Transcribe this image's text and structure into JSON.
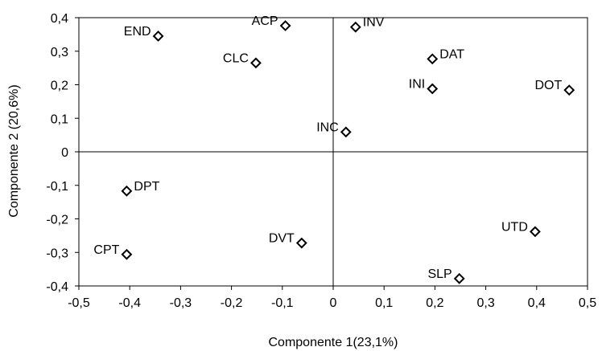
{
  "chart_data": {
    "type": "scatter",
    "xlabel": "Componente 1(23,1%)",
    "ylabel": "Componente 2 (20,6%)",
    "xlim": [
      -0.5,
      0.5
    ],
    "ylim": [
      -0.4,
      0.4
    ],
    "xticks": [
      -0.5,
      -0.4,
      -0.3,
      -0.2,
      -0.1,
      0,
      0.1,
      0.2,
      0.3,
      0.4,
      0.5
    ],
    "yticks": [
      0.4,
      0.3,
      0.2,
      0.1,
      0,
      -0.1,
      -0.2,
      -0.3,
      -0.4
    ],
    "xtick_labels": [
      "-0,5",
      "-0,4",
      "-0,3",
      "-0,2",
      "-0,1",
      "0",
      "0,1",
      "0,2",
      "0,3",
      "0,4",
      "0,5"
    ],
    "ytick_labels": [
      "0,4",
      "0,3",
      "0,2",
      "0,1",
      "0",
      "-0,1",
      "-0,2",
      "-0,3",
      "-0,4"
    ],
    "marker": "diamond-open",
    "marker_color": "#000000",
    "grid": false,
    "zero_lines": true,
    "points": [
      {
        "label": "END",
        "x": -0.344,
        "y": 0.345,
        "label_pos": "left"
      },
      {
        "label": "ACP",
        "x": -0.094,
        "y": 0.376,
        "label_pos": "left"
      },
      {
        "label": "INV",
        "x": 0.044,
        "y": 0.372,
        "label_pos": "right"
      },
      {
        "label": "CLC",
        "x": -0.152,
        "y": 0.265,
        "label_pos": "left"
      },
      {
        "label": "DAT",
        "x": 0.195,
        "y": 0.277,
        "label_pos": "right"
      },
      {
        "label": "INI",
        "x": 0.195,
        "y": 0.188,
        "label_pos": "left"
      },
      {
        "label": "DOT",
        "x": 0.464,
        "y": 0.184,
        "label_pos": "left"
      },
      {
        "label": "INC",
        "x": 0.025,
        "y": 0.059,
        "label_pos": "left"
      },
      {
        "label": "DPT",
        "x": -0.406,
        "y": -0.117,
        "label_pos": "right"
      },
      {
        "label": "DVT",
        "x": -0.062,
        "y": -0.272,
        "label_pos": "left"
      },
      {
        "label": "CPT",
        "x": -0.406,
        "y": -0.306,
        "label_pos": "left"
      },
      {
        "label": "UTD",
        "x": 0.397,
        "y": -0.238,
        "label_pos": "left"
      },
      {
        "label": "SLP",
        "x": 0.248,
        "y": -0.378,
        "label_pos": "left"
      }
    ]
  }
}
